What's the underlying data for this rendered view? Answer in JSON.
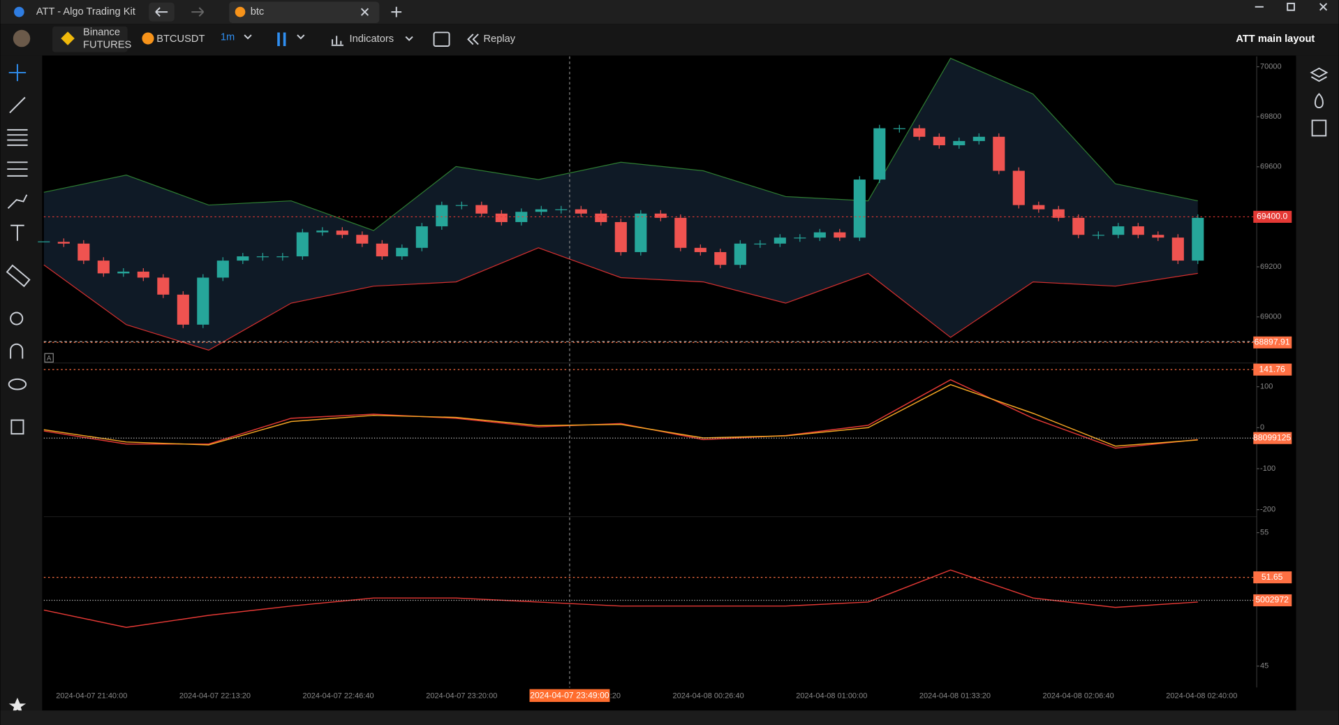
{
  "window": {
    "title": "ATT - Algo Trading Kit",
    "tab": "btc"
  },
  "toolbar": {
    "exchange": "Binance",
    "market": "FUTURES",
    "symbol": "BTCUSDT",
    "interval": "1m",
    "indicators": "Indicators",
    "replay": "Replay",
    "layout": "ATT main layout"
  },
  "misc": {
    "auto": "A"
  },
  "time_axis": {
    "labels": [
      "2024-04-07 21:40:00",
      "2024-04-07 22:13:20",
      "2024-04-07 22:46:40",
      "2024-04-07 23:20:00",
      "2024-04-07 23:53:20",
      "2024-04-08 00:26:40",
      "2024-04-08 01:00:00",
      "2024-04-08 01:33:20",
      "2024-04-08 02:06:40",
      "2024-04-08 02:40:00"
    ],
    "crosshair": "2024-04-07 23:49:00"
  },
  "chart_data": [
    {
      "type": "candlestick",
      "ylim": [
        68816,
        70038
      ],
      "yticks": [
        69000,
        69200,
        69400,
        69600,
        69800,
        70000
      ],
      "close": [
        69300,
        69293,
        69225,
        69174,
        69181,
        69157,
        69089,
        68969,
        69157,
        69225,
        69242,
        69242,
        69242,
        69338,
        69345,
        69328,
        69293,
        69242,
        69276,
        69362,
        69447,
        69447,
        69413,
        69379,
        69420,
        69430,
        69430,
        69413,
        69379,
        69259,
        69413,
        69396,
        69276,
        69259,
        69208,
        69293,
        69293,
        69317,
        69317,
        69338,
        69317,
        69549,
        69754,
        69754,
        69720,
        69686,
        69703,
        69720,
        69584,
        69447,
        69430,
        69396,
        69328,
        69328,
        69362,
        69328,
        69317,
        69225,
        69396
      ],
      "up_color": "#26a69a",
      "down_color": "#ef5350",
      "band_upper": [
        69498,
        69567,
        69447,
        69464,
        69345,
        69601,
        69549,
        69618,
        69584,
        69481,
        69464,
        70034,
        69891,
        69532,
        69464
      ],
      "band_lower": [
        69208,
        68969,
        68867,
        69055,
        69123,
        69140,
        69276,
        69157,
        69140,
        69055,
        69174,
        68918,
        69140,
        69123,
        69174
      ],
      "band_fill": "#0f1a26",
      "upper_color": "#2e7d32",
      "lower_color": "#d32f2f",
      "markers": [
        {
          "value": 69400,
          "label": "69400.0",
          "color": "#e53935"
        },
        {
          "value": 68897.91,
          "label": "68897.91",
          "color": "#ff7043"
        }
      ]
    },
    {
      "type": "line",
      "ylim": [
        -217,
        158
      ],
      "yticks": [
        -200,
        -100,
        0,
        100
      ],
      "series": [
        {
          "color": "#e53935",
          "values": [
            -8,
            -40,
            -40,
            23,
            33,
            23,
            2,
            10,
            -29,
            -19,
            6,
            117,
            23,
            -50,
            -29
          ]
        },
        {
          "color": "#f5a623",
          "values": [
            -5,
            -35,
            -42,
            15,
            30,
            25,
            5,
            8,
            -25,
            -20,
            0,
            105,
            35,
            -45,
            -30
          ]
        }
      ],
      "markers": [
        {
          "value": 141.76,
          "label": "141.76",
          "color": "#ff7043"
        }
      ],
      "truncated_label": "88099125"
    },
    {
      "type": "line",
      "ylim": [
        43.4,
        56.2
      ],
      "yticks": [
        45,
        55
      ],
      "series": [
        {
          "color": "#e53935",
          "values": [
            49.2,
            47.9,
            48.8,
            49.5,
            50.1,
            50.1,
            49.8,
            49.5,
            49.5,
            49.5,
            49.8,
            52.2,
            50.1,
            49.4,
            49.8
          ]
        }
      ],
      "markers": [
        {
          "value": 51.65,
          "label": "51.65",
          "color": "#ff7043"
        }
      ],
      "truncated_label": "5002972"
    }
  ]
}
